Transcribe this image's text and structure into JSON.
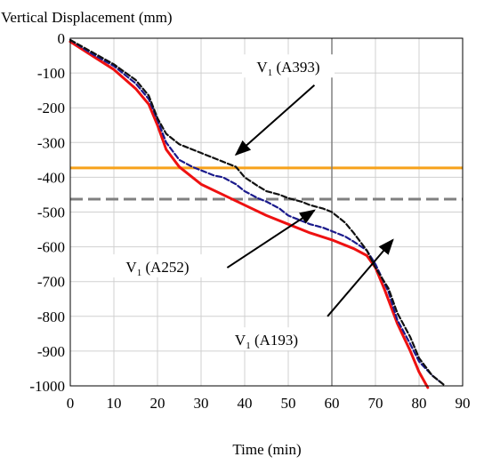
{
  "chart_data": {
    "type": "line",
    "title": "",
    "ylabel": "Vertical Displacement (mm)",
    "xlabel": "Time (min)",
    "xlim": [
      0,
      90
    ],
    "ylim": [
      -1000,
      0
    ],
    "xticks": [
      0,
      10,
      20,
      30,
      40,
      50,
      60,
      70,
      80,
      90
    ],
    "yticks": [
      0,
      -100,
      -200,
      -300,
      -400,
      -500,
      -600,
      -700,
      -800,
      -900,
      -1000
    ],
    "grid": true,
    "legend": "none",
    "series": [
      {
        "color": "#ee1111",
        "style": "solid",
        "x": [
          0,
          5,
          10,
          15,
          18,
          20,
          22,
          25,
          30,
          35,
          40,
          45,
          50,
          55,
          60,
          65,
          68,
          70,
          72,
          75,
          78,
          80,
          82
        ],
        "y": [
          -10,
          -50,
          -90,
          -145,
          -190,
          -250,
          -320,
          -370,
          -420,
          -450,
          -480,
          -510,
          -535,
          -560,
          -580,
          -605,
          -625,
          -660,
          -720,
          -820,
          -900,
          -960,
          -1005
        ]
      },
      {
        "color": "#1a1a8c",
        "style": "dashed",
        "x": [
          0,
          5,
          10,
          15,
          18,
          20,
          22,
          25,
          28,
          30,
          33,
          35,
          38,
          40,
          43,
          45,
          48,
          50,
          53,
          55,
          58,
          60,
          63,
          65,
          68,
          70,
          73,
          75,
          78,
          80,
          83,
          85
        ],
        "y": [
          -5,
          -45,
          -80,
          -130,
          -175,
          -235,
          -300,
          -350,
          -370,
          -380,
          -395,
          -400,
          -420,
          -440,
          -460,
          -470,
          -490,
          -510,
          -525,
          -535,
          -545,
          -555,
          -570,
          -585,
          -610,
          -650,
          -730,
          -810,
          -880,
          -930,
          -970,
          -990
        ]
      },
      {
        "color": "#111111",
        "style": "dashed",
        "x": [
          0,
          5,
          10,
          15,
          18,
          20,
          22,
          25,
          28,
          30,
          33,
          35,
          38,
          40,
          43,
          45,
          48,
          50,
          53,
          55,
          58,
          60,
          63,
          65,
          68,
          70,
          73,
          75,
          78,
          80,
          83,
          86
        ],
        "y": [
          -5,
          -40,
          -75,
          -120,
          -165,
          -230,
          -275,
          -305,
          -320,
          -330,
          -345,
          -355,
          -370,
          -400,
          -425,
          -440,
          -450,
          -460,
          -470,
          -480,
          -490,
          -500,
          -530,
          -560,
          -610,
          -660,
          -720,
          -790,
          -860,
          -920,
          -970,
          -1000
        ]
      }
    ],
    "hlines": [
      {
        "y": -373,
        "color": "#f7a21b",
        "style": "solid"
      },
      {
        "y": -463,
        "color": "#808080",
        "style": "dashed"
      }
    ],
    "vlines": [
      {
        "x": 60,
        "color": "#808080",
        "style": "solid"
      }
    ],
    "annotations": [
      {
        "text": "V1 (A393)",
        "base": "V",
        "sub": "1",
        "rest": " (A393)",
        "arrow_from": [
          56,
          -135
        ],
        "arrow_to": [
          38,
          -335
        ],
        "text_at": [
          50,
          -85
        ]
      },
      {
        "text": "V1 (A252)",
        "base": "V",
        "sub": "1",
        "rest": " (A252)",
        "arrow_from": [
          36,
          -660
        ],
        "arrow_to": [
          56,
          -495
        ],
        "text_at": [
          20,
          -660
        ]
      },
      {
        "text": "V1 (A193)",
        "base": "V",
        "sub": "1",
        "rest": " (A193)",
        "arrow_from": [
          59,
          -800
        ],
        "arrow_to": [
          74,
          -580
        ],
        "text_at": [
          45,
          -870
        ]
      }
    ]
  }
}
